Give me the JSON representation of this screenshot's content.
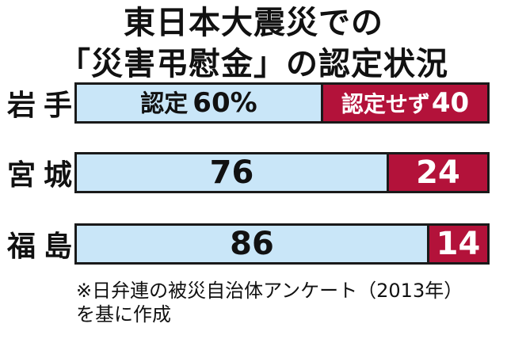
{
  "title": {
    "line1": "東日本大震災での",
    "line2": "「災害弔慰金」の認定状況"
  },
  "chart_data": {
    "type": "bar",
    "stacked": true,
    "orientation": "horizontal",
    "unit": "%",
    "categories": [
      "岩手",
      "宮城",
      "福島"
    ],
    "series": [
      {
        "name": "認定",
        "values": [
          60,
          76,
          86
        ],
        "color": "#c9e6f8"
      },
      {
        "name": "認定せず",
        "values": [
          40,
          24,
          14
        ],
        "color": "#b3123a"
      }
    ],
    "xlim": [
      0,
      100
    ],
    "grid": false,
    "first_row_labels": {
      "approved": "認定",
      "approved_value": "60%",
      "not_approved": "認定せず",
      "not_approved_value": "40"
    }
  },
  "rows": [
    {
      "char1": "岩",
      "char2": "手"
    },
    {
      "char1": "宮",
      "char2": "城"
    },
    {
      "char1": "福",
      "char2": "島"
    }
  ],
  "note": {
    "line1": "※日弁連の被災自治体アンケート（2013年）",
    "line2": "を基に作成"
  }
}
